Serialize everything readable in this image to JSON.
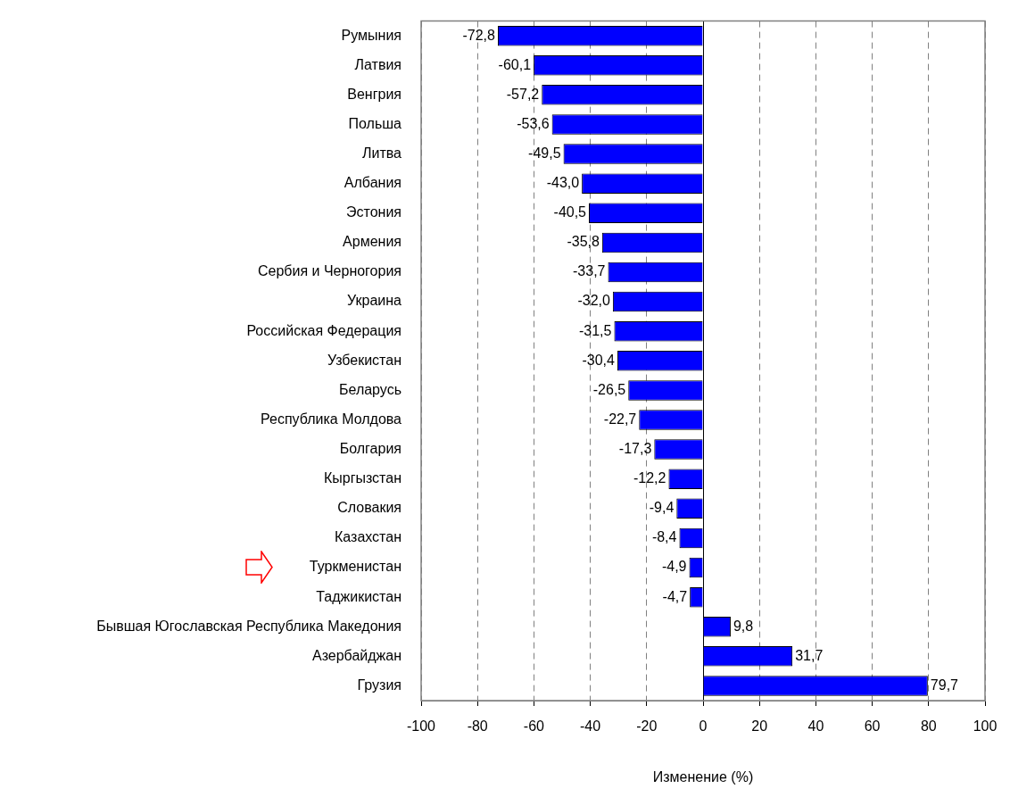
{
  "chart_data": {
    "type": "bar",
    "orientation": "horizontal",
    "xlabel": "Изменение (%)",
    "categories": [
      "Румыния",
      "Латвия",
      "Венгрия",
      "Польша",
      "Литва",
      "Албания",
      "Эстония",
      "Армения",
      "Сербия и Черногория",
      "Украина",
      "Российская Федерация",
      "Узбекистан",
      "Беларусь",
      "Республика Молдова",
      "Болгария",
      "Кыргызстан",
      "Словакия",
      "Казахстан",
      "Туркменистан",
      "Таджикистан",
      "Бывшая Югославская Республика Македония",
      "Азербайджан",
      "Грузия"
    ],
    "values": [
      -72.8,
      -60.1,
      -57.2,
      -53.6,
      -49.5,
      -43.0,
      -40.5,
      -35.8,
      -33.7,
      -32.0,
      -31.5,
      -30.4,
      -26.5,
      -22.7,
      -17.3,
      -12.2,
      -9.4,
      -8.4,
      -4.9,
      -4.7,
      9.8,
      31.7,
      79.7
    ],
    "value_labels": [
      "-72,8",
      "-60,1",
      "-57,2",
      "-53,6",
      "-49,5",
      "-43,0",
      "-40,5",
      "-35,8",
      "-33,7",
      "-32,0",
      "-31,5",
      "-30,4",
      "-26,5",
      "-22,7",
      "-17,3",
      "-12,2",
      "-9,4",
      "-8,4",
      "-4,9",
      "-4,7",
      "9,8",
      "31,7",
      "79,7"
    ],
    "color": "#0000ff",
    "xlim": [
      -100,
      100
    ],
    "xticks": [
      -100,
      -80,
      -60,
      -40,
      -20,
      0,
      20,
      40,
      60,
      80,
      100
    ],
    "grid": "x",
    "legend": false
  }
}
